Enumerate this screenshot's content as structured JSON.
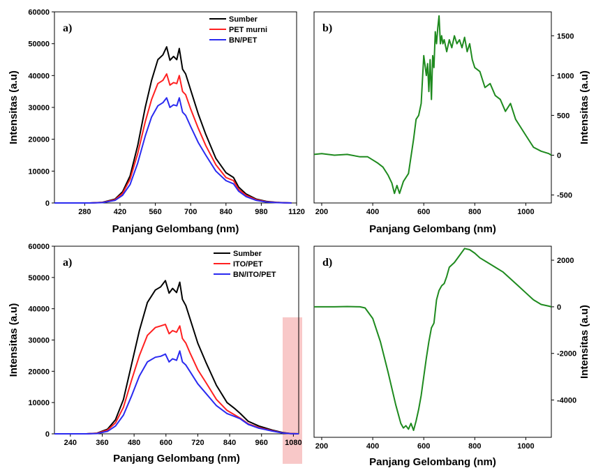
{
  "colors": {
    "black": "#000000",
    "red": "#ff2020",
    "blue": "#2a2af0",
    "green": "#1e8a1e",
    "pink": "#f8c8c8"
  },
  "chart_data": [
    {
      "type": "line",
      "panel_label": "a)",
      "xlabel": "Panjang Gelombang (nm)",
      "ylabel": "Intensitas (a.u)",
      "xlim": [
        160,
        1120
      ],
      "ylim": [
        0,
        60000
      ],
      "xticks": [
        280,
        420,
        560,
        700,
        840,
        980,
        1120
      ],
      "yticks": [
        0,
        10000,
        20000,
        30000,
        40000,
        50000,
        60000
      ],
      "legend": "top-right",
      "x": [
        160,
        300,
        350,
        400,
        430,
        460,
        490,
        520,
        545,
        570,
        590,
        605,
        618,
        632,
        645,
        655,
        668,
        680,
        700,
        730,
        760,
        800,
        840,
        870,
        890,
        920,
        960,
        1000,
        1040,
        1070,
        1100
      ],
      "series": [
        {
          "name": "Sumber",
          "color": "black",
          "values": [
            0,
            0,
            200,
            1200,
            3500,
            8500,
            18000,
            30000,
            38500,
            45000,
            46500,
            49000,
            44800,
            46000,
            45000,
            48500,
            42000,
            40500,
            35500,
            28000,
            21500,
            14000,
            9500,
            8000,
            5000,
            2800,
            1200,
            500,
            200,
            80,
            0
          ]
        },
        {
          "name": "PET murni",
          "color": "red",
          "values": [
            0,
            0,
            150,
            1000,
            3000,
            7500,
            15500,
            25500,
            32500,
            37500,
            38500,
            40500,
            37000,
            37800,
            37500,
            40000,
            35000,
            34000,
            29500,
            23500,
            18000,
            12000,
            8000,
            7000,
            4300,
            2400,
            1000,
            400,
            150,
            60,
            0
          ]
        },
        {
          "name": "BN/PET",
          "color": "blue",
          "values": [
            0,
            0,
            100,
            800,
            2400,
            5800,
            12500,
            21000,
            27000,
            30500,
            31500,
            33000,
            30000,
            30800,
            30500,
            33000,
            28500,
            27500,
            24000,
            19000,
            15000,
            10000,
            7000,
            6000,
            3700,
            2000,
            800,
            300,
            100,
            40,
            0
          ]
        }
      ]
    },
    {
      "type": "line",
      "panel_label": "b)",
      "xlabel": "Panjang Gelombang (nm)",
      "ylabel": "Intensitas (a.u)",
      "xlim": [
        170,
        1100
      ],
      "ylim": [
        -600,
        1800
      ],
      "xticks": [
        200,
        400,
        600,
        800,
        1000
      ],
      "yticks": [
        -500,
        0,
        500,
        1000,
        1500
      ],
      "series": [
        {
          "color": "green",
          "x": [
            170,
            200,
            250,
            300,
            350,
            380,
            400,
            420,
            440,
            460,
            475,
            485,
            495,
            505,
            520,
            540,
            560,
            570,
            580,
            590,
            600,
            610,
            615,
            620,
            625,
            630,
            635,
            640,
            645,
            650,
            655,
            660,
            665,
            670,
            675,
            680,
            690,
            700,
            710,
            720,
            730,
            740,
            750,
            760,
            770,
            780,
            790,
            800,
            820,
            840,
            860,
            880,
            900,
            920,
            940,
            960,
            980,
            1000,
            1030,
            1060,
            1090,
            1100
          ],
          "values": [
            10,
            20,
            0,
            10,
            -20,
            -20,
            -60,
            -100,
            -150,
            -250,
            -350,
            -480,
            -380,
            -480,
            -330,
            -230,
            200,
            450,
            500,
            650,
            1250,
            1000,
            1150,
            800,
            1200,
            700,
            1250,
            1100,
            1550,
            1400,
            1600,
            1750,
            1400,
            1500,
            1400,
            1450,
            1300,
            1450,
            1350,
            1500,
            1400,
            1450,
            1350,
            1480,
            1300,
            1400,
            1200,
            1100,
            1050,
            850,
            900,
            750,
            700,
            550,
            650,
            450,
            350,
            250,
            100,
            50,
            20,
            0
          ]
        }
      ]
    },
    {
      "type": "line",
      "panel_label": "a)",
      "xlabel": "Panjang Gelombang (nm)",
      "ylabel": "Intensitas (a.u)",
      "xlim": [
        180,
        1100
      ],
      "ylim": [
        0,
        60000
      ],
      "xticks": [
        240,
        360,
        480,
        600,
        720,
        840,
        960,
        1080
      ],
      "yticks": [
        0,
        10000,
        20000,
        30000,
        40000,
        50000,
        60000
      ],
      "legend": "top-right",
      "x": [
        180,
        300,
        340,
        380,
        410,
        440,
        470,
        500,
        530,
        560,
        580,
        598,
        612,
        625,
        640,
        652,
        662,
        675,
        690,
        720,
        750,
        790,
        830,
        860,
        880,
        910,
        950,
        1000,
        1040,
        1070,
        1100
      ],
      "series": [
        {
          "name": "Sumber",
          "color": "black",
          "values": [
            0,
            0,
            200,
            1500,
            4500,
            11000,
            22000,
            33000,
            42000,
            46000,
            47000,
            49000,
            45000,
            46500,
            45200,
            48500,
            43000,
            41000,
            37000,
            29000,
            23000,
            15500,
            10000,
            8000,
            6500,
            4000,
            2500,
            1200,
            400,
            100,
            0
          ]
        },
        {
          "name": "ITO/PET",
          "color": "red",
          "values": [
            0,
            0,
            150,
            1200,
            3500,
            8500,
            17000,
            25000,
            31500,
            34000,
            34500,
            35000,
            32000,
            33000,
            32500,
            34500,
            30500,
            29000,
            26000,
            20500,
            16500,
            11000,
            7500,
            6000,
            5000,
            3200,
            2000,
            1000,
            300,
            80,
            0
          ]
        },
        {
          "name": "BN/ITO/PET",
          "color": "blue",
          "values": [
            0,
            0,
            100,
            800,
            2500,
            6000,
            12000,
            18500,
            23000,
            24500,
            24800,
            25500,
            23000,
            24000,
            23500,
            26500,
            23000,
            22000,
            20000,
            16000,
            13000,
            9000,
            6500,
            5500,
            4800,
            3000,
            1800,
            900,
            250,
            60,
            0
          ]
        }
      ]
    },
    {
      "type": "line",
      "panel_label": "d)",
      "xlabel": "Panjang Gelombang (nm)",
      "ylabel": "Intensitas (a.u)",
      "xlim": [
        170,
        1100
      ],
      "ylim": [
        -5600,
        2600
      ],
      "xticks": [
        200,
        400,
        600,
        800,
        1000
      ],
      "yticks": [
        -4000,
        -2000,
        0,
        2000
      ],
      "series": [
        {
          "color": "green",
          "x": [
            170,
            200,
            250,
            300,
            350,
            370,
            400,
            430,
            460,
            490,
            510,
            520,
            530,
            540,
            550,
            560,
            570,
            580,
            590,
            600,
            610,
            620,
            630,
            640,
            650,
            660,
            670,
            680,
            690,
            700,
            720,
            740,
            760,
            780,
            800,
            820,
            850,
            880,
            910,
            940,
            970,
            1000,
            1030,
            1060,
            1090,
            1100
          ],
          "values": [
            0,
            0,
            0,
            10,
            0,
            -50,
            -500,
            -1500,
            -2800,
            -4200,
            -5000,
            -5200,
            -5100,
            -5250,
            -5000,
            -5300,
            -4900,
            -4400,
            -3800,
            -3000,
            -2200,
            -1500,
            -900,
            -700,
            300,
            700,
            900,
            1000,
            1300,
            1700,
            1900,
            2200,
            2500,
            2450,
            2300,
            2100,
            1900,
            1700,
            1500,
            1200,
            900,
            600,
            300,
            100,
            30,
            0
          ]
        }
      ]
    }
  ]
}
